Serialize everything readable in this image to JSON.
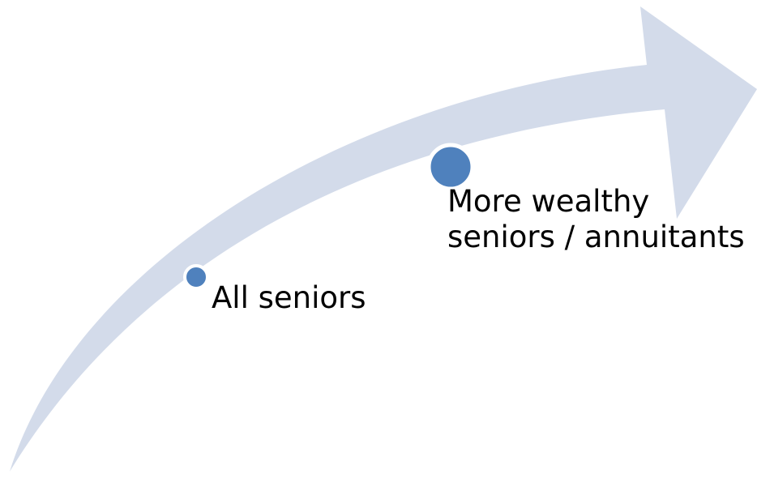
{
  "diagram": {
    "colors": {
      "arrow": "#d3dbea",
      "node_fill": "#4f81bd",
      "node_ring": "#ffffff"
    },
    "stages": [
      {
        "label": [
          "All seniors"
        ]
      },
      {
        "label": [
          "More wealthy",
          "seniors / annuitants"
        ]
      }
    ]
  }
}
